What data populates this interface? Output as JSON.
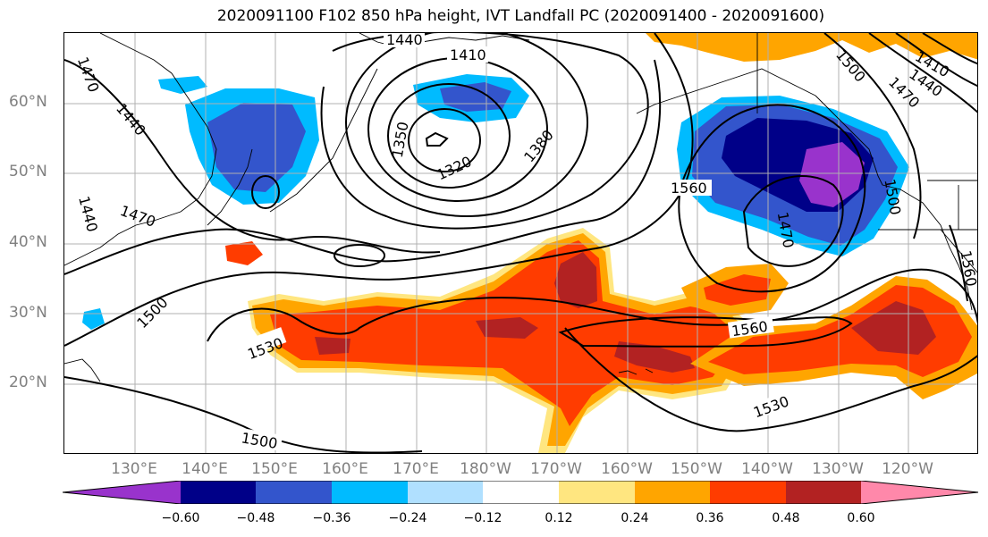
{
  "title": "2020091100 F102 850 hPa height, IVT Landfall PC (2020091400 - 2020091600)",
  "lat_labels": [
    "60°N",
    "50°N",
    "40°N",
    "30°N",
    "20°N"
  ],
  "lon_labels": [
    "130°E",
    "140°E",
    "150°E",
    "160°E",
    "170°E",
    "180°W",
    "170°W",
    "160°W",
    "150°W",
    "140°W",
    "130°W",
    "120°W"
  ],
  "contour_labels": [
    "1440",
    "1410",
    "1470",
    "1440",
    "1380",
    "1350",
    "1320",
    "1440",
    "1470",
    "1500",
    "1530",
    "1500",
    "1560",
    "1560",
    "1530",
    "1500",
    "1440",
    "1470",
    "1410",
    "1470",
    "1500",
    "1560"
  ],
  "colorbar": {
    "ticks": [
      "−0.60",
      "−0.48",
      "−0.36",
      "−0.24",
      "−0.12",
      "0.12",
      "0.24",
      "0.36",
      "0.48",
      "0.60"
    ],
    "colors": [
      "#9933cc",
      "#000088",
      "#3355cc",
      "#00bbff",
      "#b0e0ff",
      "#ffffff",
      "#ffe680",
      "#ffa500",
      "#ff3c00",
      "#b22222",
      "#ff88aa"
    ]
  }
}
